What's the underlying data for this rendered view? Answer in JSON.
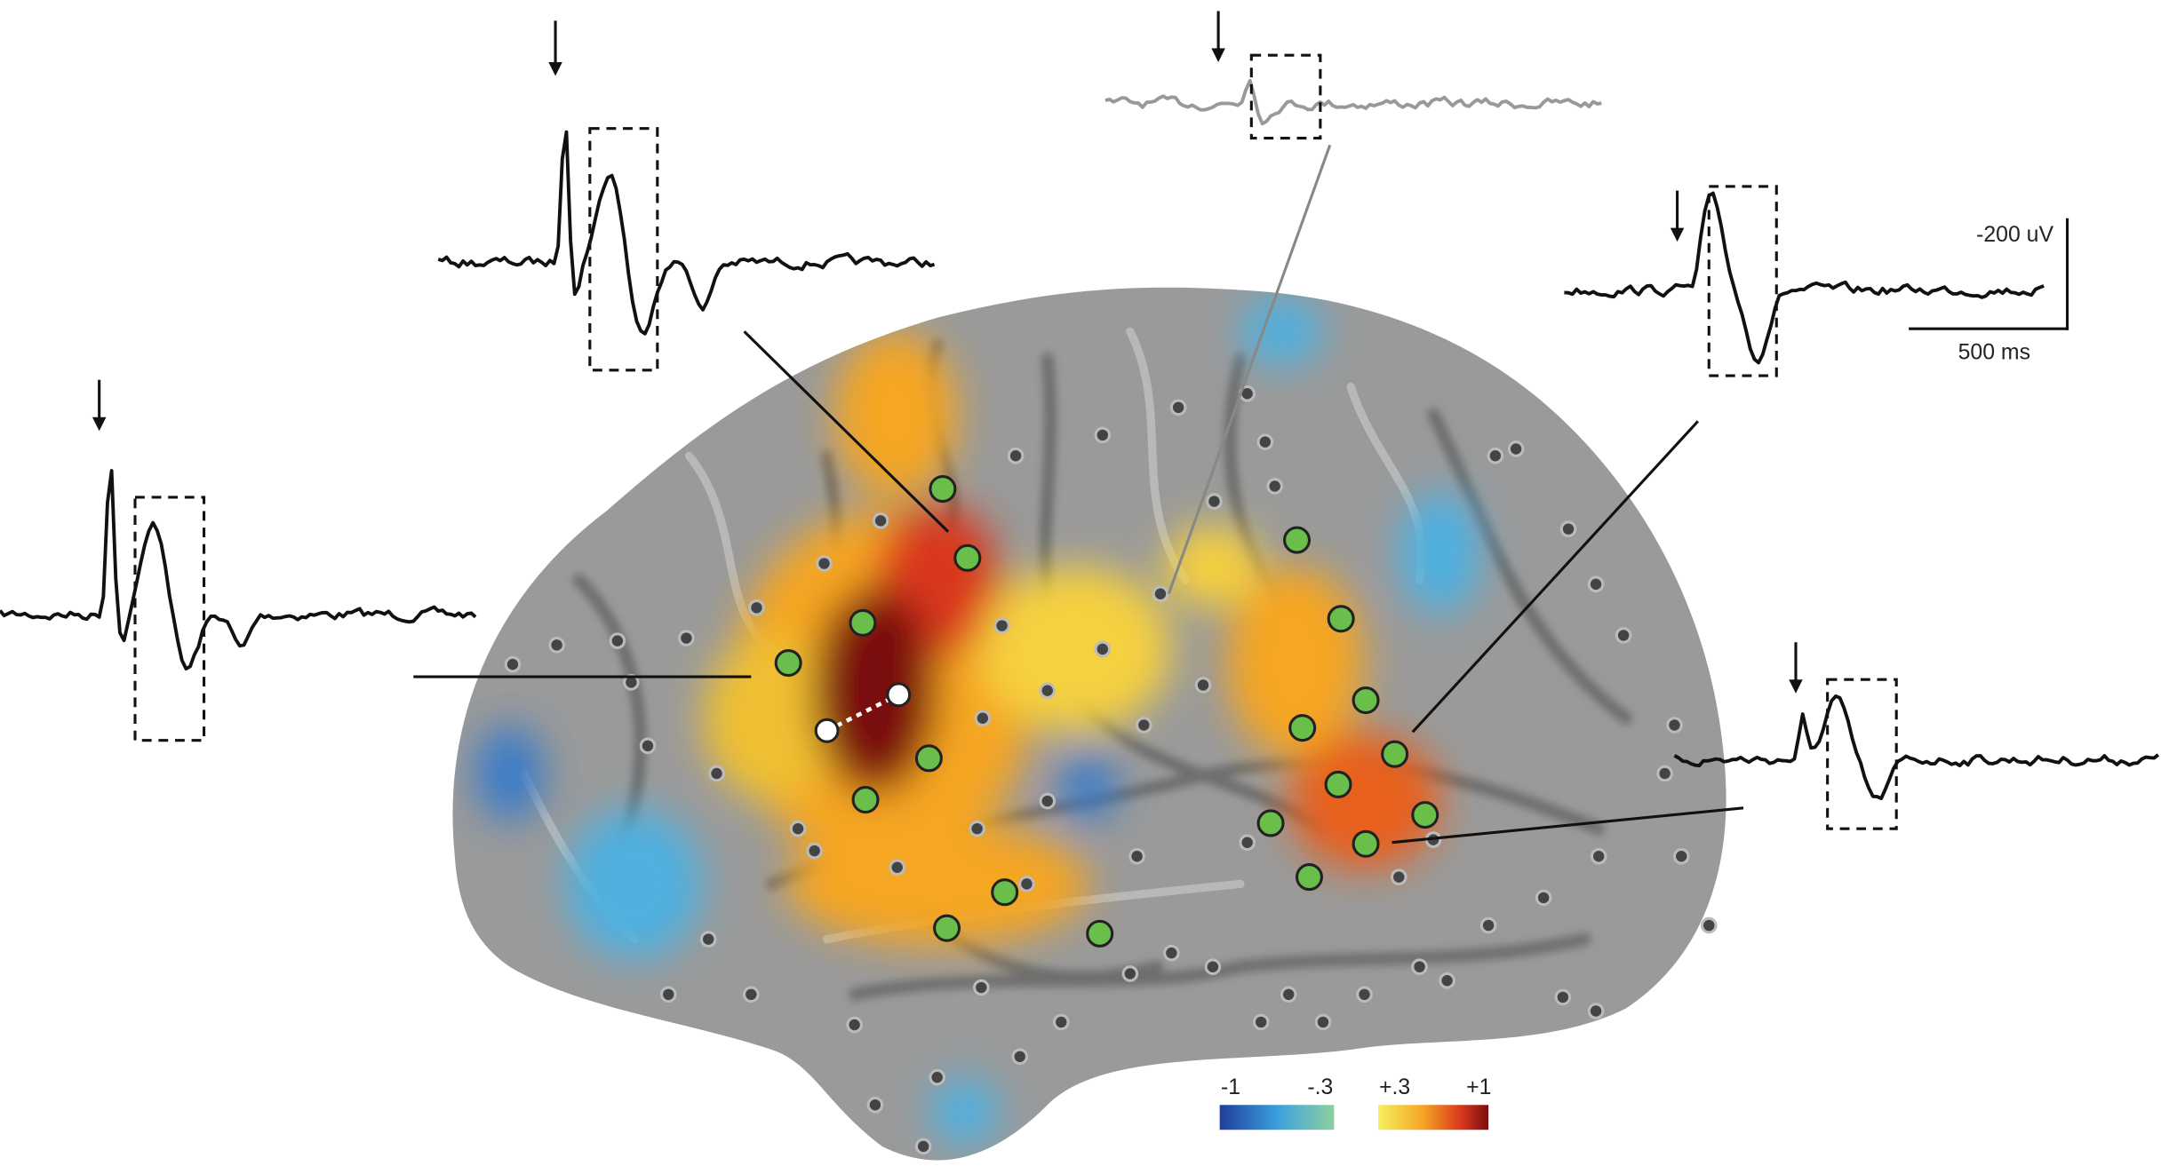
{
  "scale_bar": {
    "amplitude_label": "-200 uV",
    "time_label": "500 ms"
  },
  "colorbar": {
    "labels": [
      "-1",
      "-.3",
      "+.3",
      "+1"
    ]
  }
}
